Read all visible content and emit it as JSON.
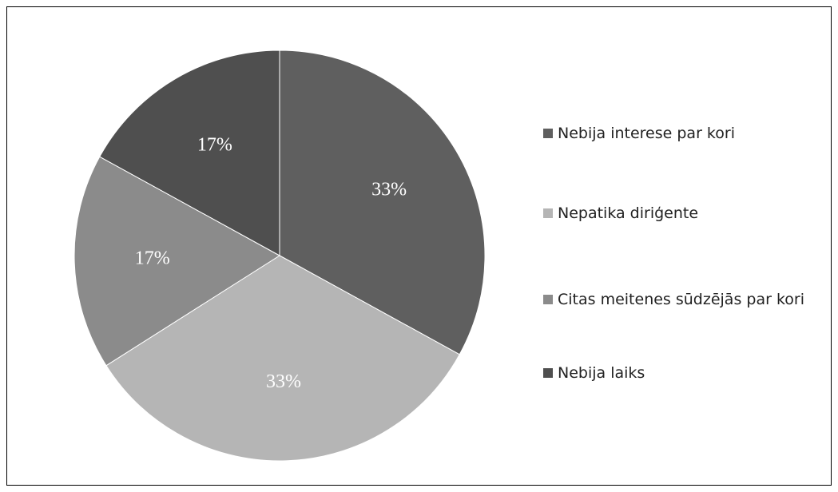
{
  "chart_data": {
    "type": "pie",
    "categories": [
      "Nebija interese par kori",
      "Nepatika diriģente",
      "Citas meitenes sūdzējās par kori",
      "Nebija laiks"
    ],
    "values": [
      33,
      33,
      17,
      17
    ],
    "value_labels": [
      "33%",
      "33%",
      "17%",
      "17%"
    ],
    "colors": [
      "#5f5f5f",
      "#b5b5b5",
      "#8b8b8b",
      "#4f4f4f"
    ],
    "legend": "right"
  }
}
